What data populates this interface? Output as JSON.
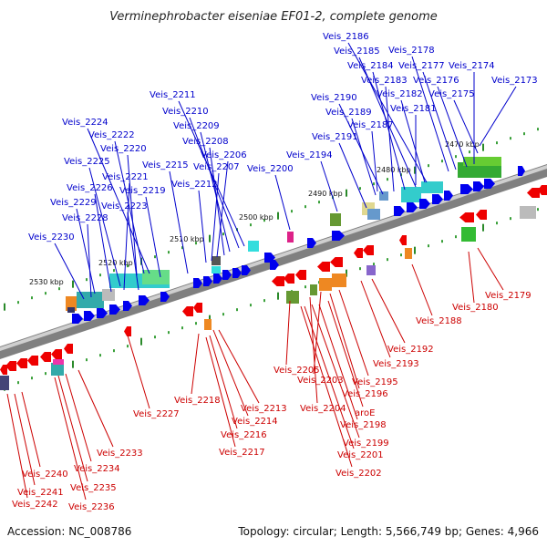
{
  "title": "Verminephrobacter eiseniae EF01-2, complete genome",
  "footer": {
    "accession": "Accession: NC_008786",
    "summary": "Topology: circular; Length: 5,566,749 bp; Genes: 4,966"
  },
  "scale_labels": [
    "2470 kbp",
    "2480 kbp",
    "2490 kbp",
    "2500 kbp",
    "2510 kbp",
    "2520 kbp",
    "2530 kbp"
  ],
  "colors": {
    "backbone": "#808080",
    "forward_genes": "#0000ee",
    "reverse_genes": "#ee0000",
    "forward_labels": "#0000cc",
    "reverse_labels": "#cc0000",
    "scale_ticks": "#2a8a2a"
  },
  "forward_labels": [
    "Veis_2186",
    "Veis_2185",
    "Veis_2178",
    "Veis_2184",
    "Veis_2177",
    "Veis_2174",
    "Veis_2183",
    "Veis_2176",
    "Veis_2173",
    "Veis_2190",
    "Veis_2182",
    "Veis_2175",
    "Veis_2181",
    "Veis_2189",
    "Veis_2187",
    "Veis_2191",
    "Veis_2194",
    "Veis_2211",
    "Veis_2210",
    "Veis_2209",
    "Veis_2208",
    "Veis_2206",
    "Veis_2207",
    "Veis_2200",
    "Veis_2212",
    "Veis_2215",
    "Veis_2224",
    "Veis_2222",
    "Veis_2220",
    "Veis_2225",
    "Veis_2221",
    "Veis_2226",
    "Veis_2219",
    "Veis_2229",
    "Veis_2223",
    "Veis_2228",
    "Veis_2230"
  ],
  "reverse_labels": [
    "Veis_2179",
    "Veis_2180",
    "Veis_2188",
    "Veis_2192",
    "Veis_2193",
    "Veis_2205",
    "Veis_2195",
    "Veis_2203",
    "Veis_2196",
    "Veis_2204",
    "aroE",
    "Veis_2198",
    "Veis_2199",
    "Veis_2201",
    "Veis_2202",
    "Veis_2218",
    "Veis_2213",
    "Veis_2214",
    "Veis_2216",
    "Veis_2217",
    "Veis_2227",
    "Veis_2233",
    "Veis_2234",
    "Veis_2235",
    "Veis_2236",
    "Veis_2240",
    "Veis_2241",
    "Veis_2242"
  ]
}
